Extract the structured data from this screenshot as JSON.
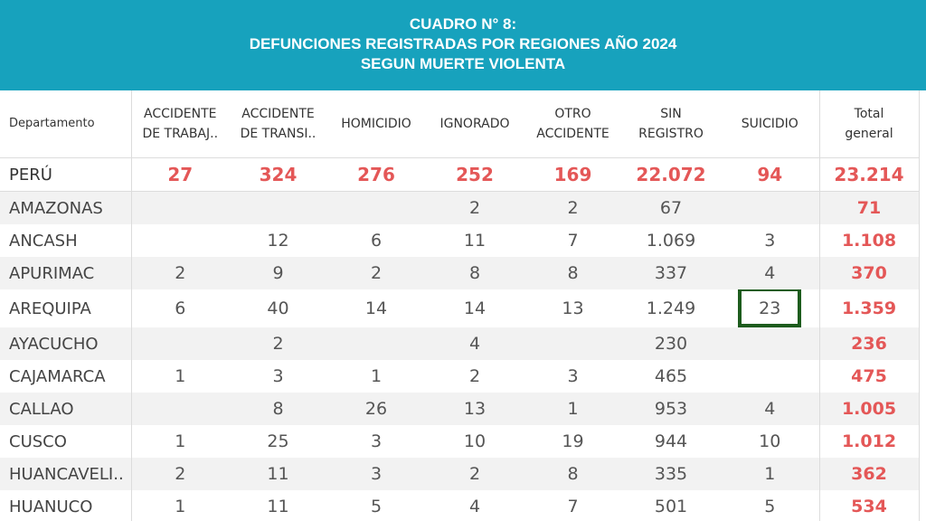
{
  "header": {
    "line1": "CUADRO N° 8:",
    "line2": "DEFUNCIONES REGISTRADAS POR REGIONES  AÑO 2024",
    "line3": "SEGUN MUERTE VIOLENTA"
  },
  "columns": {
    "departamento": "Departamento",
    "acc_trabajo_1": "ACCIDENTE",
    "acc_trabajo_2": "DE TRABAJ..",
    "acc_transito_1": "ACCIDENTE",
    "acc_transito_2": "DE TRANSI..",
    "homicidio": "HOMICIDIO",
    "ignorado": "IGNORADO",
    "otro_1": "OTRO",
    "otro_2": "ACCIDENTE",
    "sin_1": "SIN",
    "sin_2": "REGISTRO",
    "suicidio": "SUICIDIO",
    "total_1": "Total",
    "total_2": "general"
  },
  "rows": [
    {
      "dep": "PERÚ",
      "acc_trab": "27",
      "acc_tran": "324",
      "hom": "276",
      "ign": "252",
      "otro": "169",
      "sin": "22.072",
      "sui": "94",
      "total": "23.214"
    },
    {
      "dep": "AMAZONAS",
      "acc_trab": "",
      "acc_tran": "",
      "hom": "",
      "ign": "2",
      "otro": "2",
      "sin": "67",
      "sui": "",
      "total": "71"
    },
    {
      "dep": "ANCASH",
      "acc_trab": "",
      "acc_tran": "12",
      "hom": "6",
      "ign": "11",
      "otro": "7",
      "sin": "1.069",
      "sui": "3",
      "total": "1.108"
    },
    {
      "dep": "APURIMAC",
      "acc_trab": "2",
      "acc_tran": "9",
      "hom": "2",
      "ign": "8",
      "otro": "8",
      "sin": "337",
      "sui": "4",
      "total": "370"
    },
    {
      "dep": "AREQUIPA",
      "acc_trab": "6",
      "acc_tran": "40",
      "hom": "14",
      "ign": "14",
      "otro": "13",
      "sin": "1.249",
      "sui": "23",
      "total": "1.359"
    },
    {
      "dep": "AYACUCHO",
      "acc_trab": "",
      "acc_tran": "2",
      "hom": "",
      "ign": "4",
      "otro": "",
      "sin": "230",
      "sui": "",
      "total": "236"
    },
    {
      "dep": "CAJAMARCA",
      "acc_trab": "1",
      "acc_tran": "3",
      "hom": "1",
      "ign": "2",
      "otro": "3",
      "sin": "465",
      "sui": "",
      "total": "475"
    },
    {
      "dep": "CALLAO",
      "acc_trab": "",
      "acc_tran": "8",
      "hom": "26",
      "ign": "13",
      "otro": "1",
      "sin": "953",
      "sui": "4",
      "total": "1.005"
    },
    {
      "dep": "CUSCO",
      "acc_trab": "1",
      "acc_tran": "25",
      "hom": "3",
      "ign": "10",
      "otro": "19",
      "sin": "944",
      "sui": "10",
      "total": "1.012"
    },
    {
      "dep": "HUANCAVELI..",
      "acc_trab": "2",
      "acc_tran": "11",
      "hom": "3",
      "ign": "2",
      "otro": "8",
      "sin": "335",
      "sui": "1",
      "total": "362"
    },
    {
      "dep": "HUANUCO",
      "acc_trab": "1",
      "acc_tran": "11",
      "hom": "5",
      "ign": "4",
      "otro": "7",
      "sin": "501",
      "sui": "5",
      "total": "534"
    }
  ],
  "colors": {
    "header_bg": "#17a2bd",
    "total_red": "#e45757",
    "highlight_border": "#1d5c1d"
  }
}
